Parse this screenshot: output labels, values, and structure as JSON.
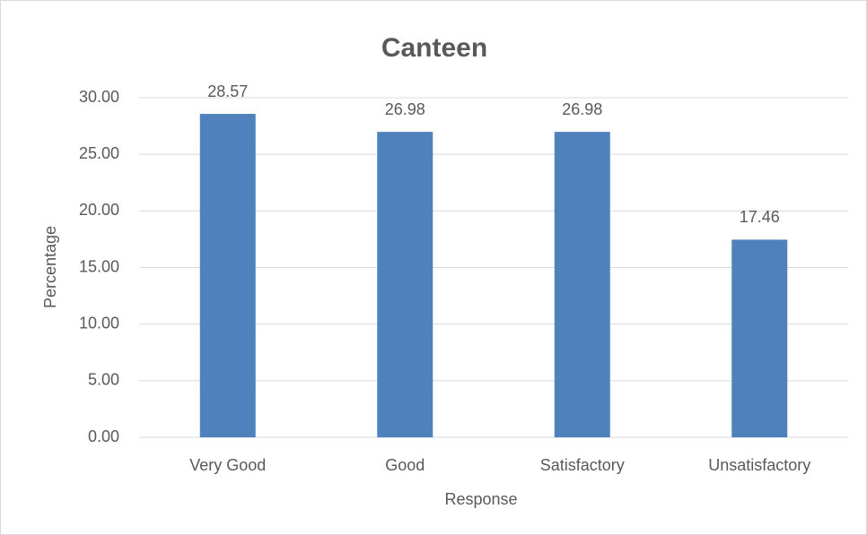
{
  "chart_data": {
    "type": "bar",
    "title": "Canteen",
    "x_label": "Response",
    "y_label": "Percentage",
    "categories": [
      "Very Good",
      "Good",
      "Satisfactory",
      "Unsatisfactory"
    ],
    "values": [
      28.57,
      26.98,
      26.98,
      17.46
    ],
    "color": "#4f81bd",
    "ylim": [
      0,
      30
    ],
    "yticks": [
      {
        "value": 0,
        "label": "0.00"
      },
      {
        "value": 5,
        "label": "5.00"
      },
      {
        "value": 10,
        "label": "10.00"
      },
      {
        "value": 15,
        "label": "15.00"
      },
      {
        "value": 20,
        "label": "20.00"
      },
      {
        "value": 25,
        "label": "25.00"
      },
      {
        "value": 30,
        "label": "30.00"
      }
    ],
    "grid": true
  }
}
